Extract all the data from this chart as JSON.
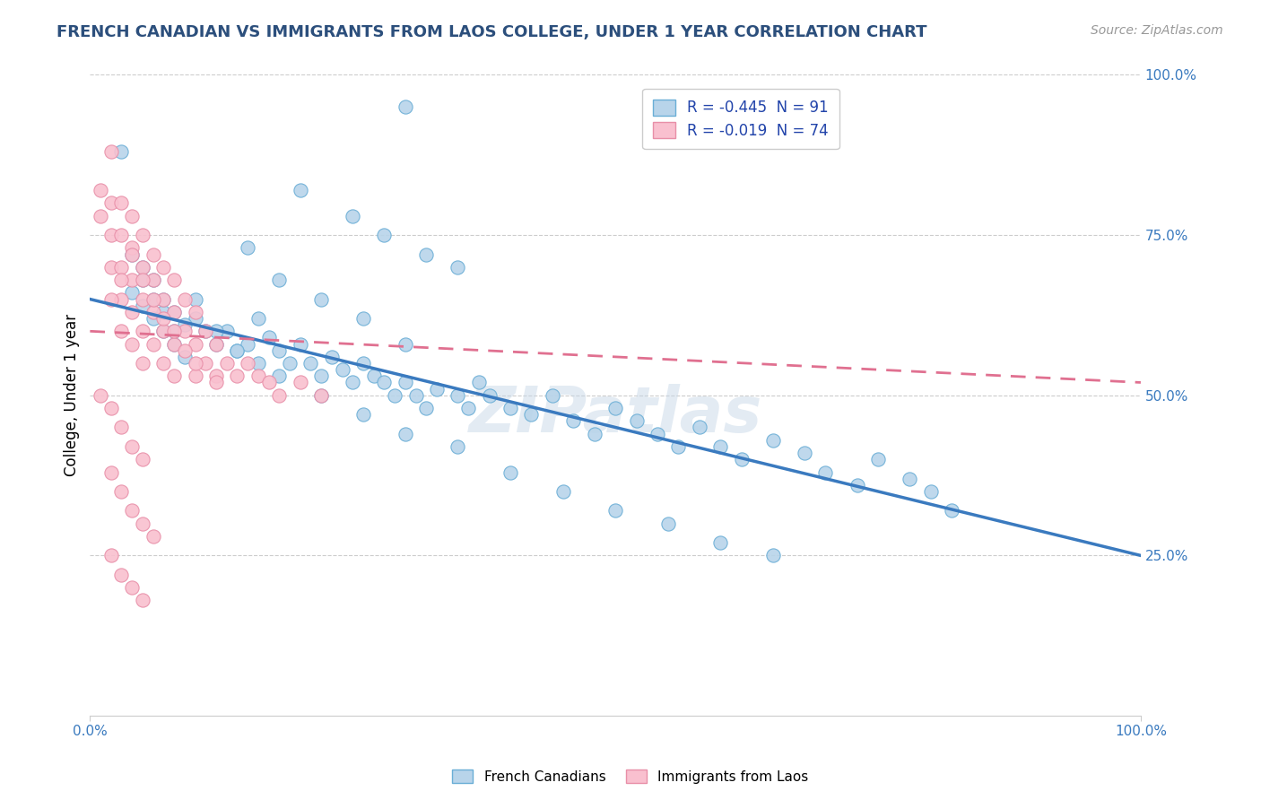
{
  "title": "FRENCH CANADIAN VS IMMIGRANTS FROM LAOS COLLEGE, UNDER 1 YEAR CORRELATION CHART",
  "source": "Source: ZipAtlas.com",
  "ylabel": "College, Under 1 year",
  "xlim": [
    0.0,
    1.0
  ],
  "ylim": [
    0.0,
    1.0
  ],
  "right_ytick_labels": [
    "25.0%",
    "50.0%",
    "75.0%",
    "100.0%"
  ],
  "right_ytick_values": [
    0.25,
    0.5,
    0.75,
    1.0
  ],
  "legend_r1": "R = -0.445",
  "legend_n1": "N = 91",
  "legend_r2": "R = -0.019",
  "legend_n2": "N = 74",
  "blue_fill_color": "#b8d4ea",
  "blue_edge_color": "#6aaed6",
  "pink_fill_color": "#f9c0cf",
  "pink_edge_color": "#e88fa8",
  "blue_line_color": "#3a7abf",
  "pink_line_color": "#e07090",
  "title_color": "#2c4f7c",
  "source_color": "#999999",
  "grid_color": "#cccccc",
  "watermark": "ZIPatlas",
  "blue_scatter_x": [
    0.3,
    0.03,
    0.2,
    0.25,
    0.28,
    0.32,
    0.35,
    0.15,
    0.18,
    0.22,
    0.26,
    0.3,
    0.05,
    0.06,
    0.07,
    0.08,
    0.04,
    0.05,
    0.06,
    0.07,
    0.08,
    0.09,
    0.1,
    0.11,
    0.12,
    0.13,
    0.14,
    0.15,
    0.16,
    0.17,
    0.18,
    0.19,
    0.2,
    0.21,
    0.22,
    0.23,
    0.24,
    0.25,
    0.26,
    0.27,
    0.28,
    0.29,
    0.3,
    0.31,
    0.32,
    0.33,
    0.35,
    0.36,
    0.37,
    0.38,
    0.4,
    0.42,
    0.44,
    0.46,
    0.48,
    0.5,
    0.52,
    0.54,
    0.56,
    0.58,
    0.6,
    0.62,
    0.65,
    0.68,
    0.7,
    0.73,
    0.75,
    0.78,
    0.8,
    0.82,
    0.04,
    0.05,
    0.06,
    0.07,
    0.08,
    0.09,
    0.1,
    0.12,
    0.14,
    0.16,
    0.18,
    0.22,
    0.26,
    0.3,
    0.35,
    0.4,
    0.45,
    0.5,
    0.55,
    0.6,
    0.65
  ],
  "blue_scatter_y": [
    0.95,
    0.88,
    0.82,
    0.78,
    0.75,
    0.72,
    0.7,
    0.73,
    0.68,
    0.65,
    0.62,
    0.58,
    0.68,
    0.65,
    0.63,
    0.6,
    0.66,
    0.64,
    0.62,
    0.6,
    0.58,
    0.56,
    0.62,
    0.6,
    0.58,
    0.6,
    0.57,
    0.58,
    0.62,
    0.59,
    0.57,
    0.55,
    0.58,
    0.55,
    0.53,
    0.56,
    0.54,
    0.52,
    0.55,
    0.53,
    0.52,
    0.5,
    0.52,
    0.5,
    0.48,
    0.51,
    0.5,
    0.48,
    0.52,
    0.5,
    0.48,
    0.47,
    0.5,
    0.46,
    0.44,
    0.48,
    0.46,
    0.44,
    0.42,
    0.45,
    0.42,
    0.4,
    0.43,
    0.41,
    0.38,
    0.36,
    0.4,
    0.37,
    0.35,
    0.32,
    0.72,
    0.7,
    0.68,
    0.65,
    0.63,
    0.61,
    0.65,
    0.6,
    0.57,
    0.55,
    0.53,
    0.5,
    0.47,
    0.44,
    0.42,
    0.38,
    0.35,
    0.32,
    0.3,
    0.27,
    0.25
  ],
  "pink_scatter_x": [
    0.01,
    0.01,
    0.02,
    0.02,
    0.02,
    0.02,
    0.03,
    0.03,
    0.03,
    0.03,
    0.03,
    0.04,
    0.04,
    0.04,
    0.04,
    0.04,
    0.05,
    0.05,
    0.05,
    0.05,
    0.05,
    0.06,
    0.06,
    0.06,
    0.06,
    0.07,
    0.07,
    0.07,
    0.07,
    0.08,
    0.08,
    0.08,
    0.08,
    0.09,
    0.09,
    0.1,
    0.1,
    0.1,
    0.11,
    0.11,
    0.12,
    0.12,
    0.13,
    0.14,
    0.15,
    0.16,
    0.17,
    0.18,
    0.2,
    0.22,
    0.02,
    0.03,
    0.04,
    0.05,
    0.06,
    0.07,
    0.08,
    0.09,
    0.1,
    0.12,
    0.01,
    0.02,
    0.03,
    0.04,
    0.05,
    0.02,
    0.03,
    0.04,
    0.05,
    0.06,
    0.02,
    0.03,
    0.04,
    0.05
  ],
  "pink_scatter_y": [
    0.82,
    0.78,
    0.88,
    0.8,
    0.75,
    0.7,
    0.8,
    0.75,
    0.7,
    0.65,
    0.6,
    0.78,
    0.73,
    0.68,
    0.63,
    0.58,
    0.75,
    0.7,
    0.65,
    0.6,
    0.55,
    0.72,
    0.68,
    0.63,
    0.58,
    0.7,
    0.65,
    0.6,
    0.55,
    0.68,
    0.63,
    0.58,
    0.53,
    0.65,
    0.6,
    0.63,
    0.58,
    0.53,
    0.6,
    0.55,
    0.58,
    0.53,
    0.55,
    0.53,
    0.55,
    0.53,
    0.52,
    0.5,
    0.52,
    0.5,
    0.65,
    0.68,
    0.72,
    0.68,
    0.65,
    0.62,
    0.6,
    0.57,
    0.55,
    0.52,
    0.5,
    0.48,
    0.45,
    0.42,
    0.4,
    0.38,
    0.35,
    0.32,
    0.3,
    0.28,
    0.25,
    0.22,
    0.2,
    0.18
  ]
}
